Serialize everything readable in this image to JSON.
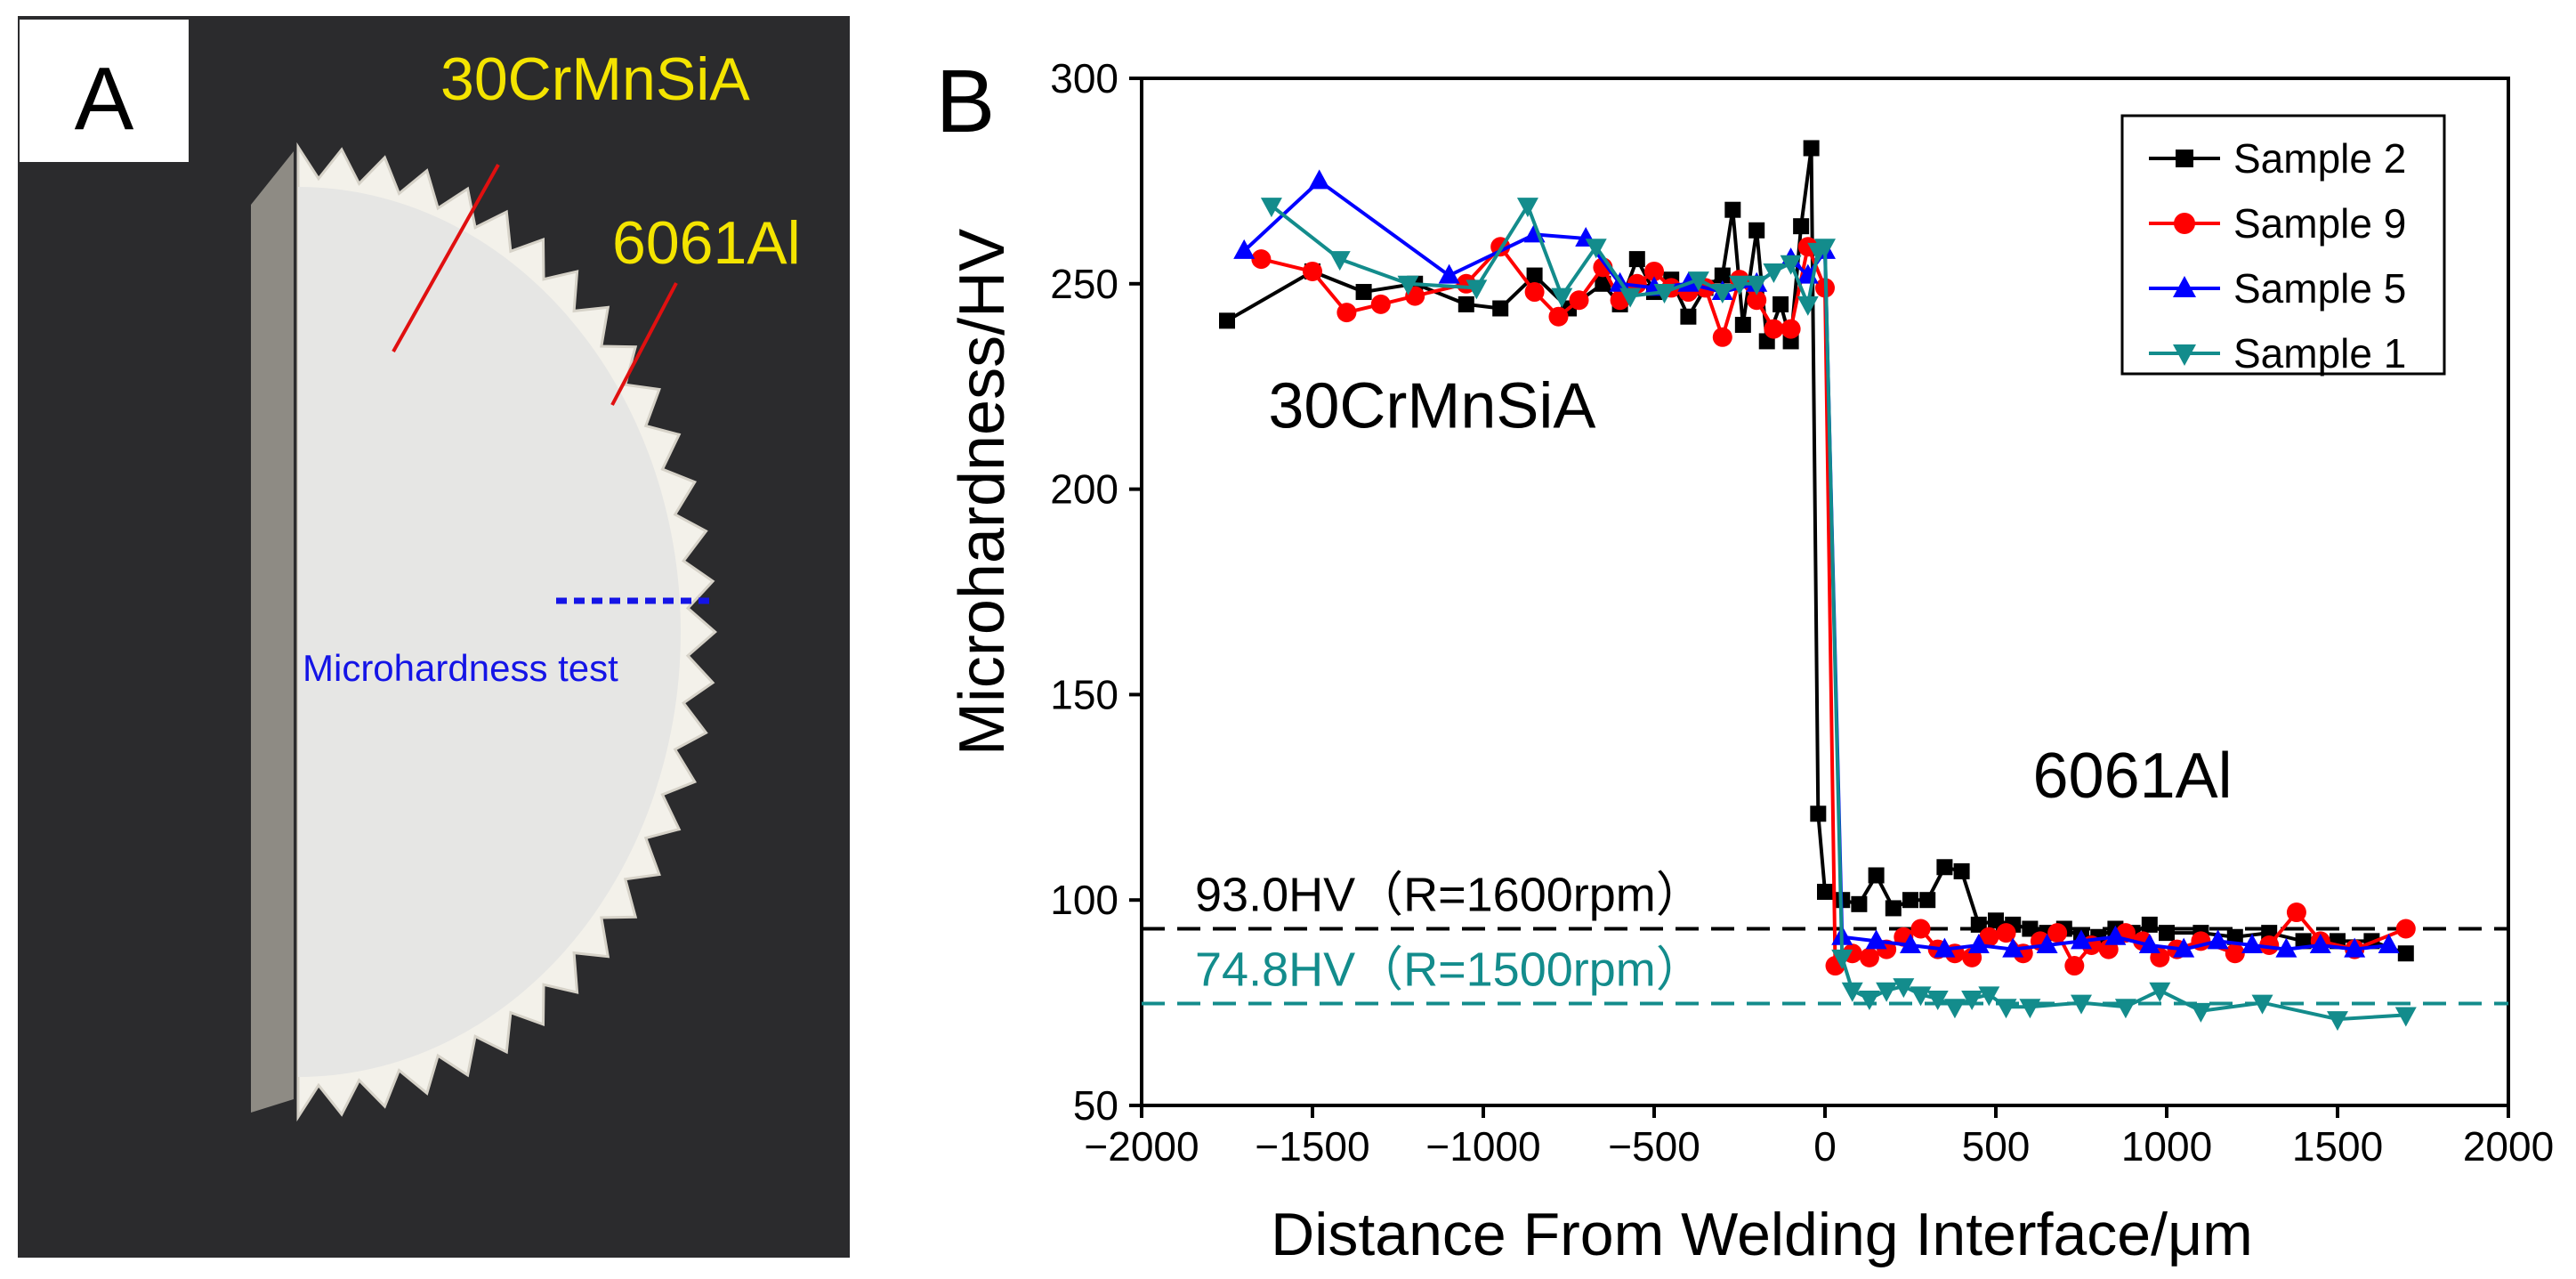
{
  "panel_a": {
    "letter": "A",
    "label_steel": "30CrMnSiA",
    "label_al": "6061Al",
    "test_label": "Microhardness test",
    "colors": {
      "background": "#2b2b2d",
      "label": "#f4e400",
      "test": "#1414e6",
      "leader": "#e01010"
    }
  },
  "panel_b": {
    "letter": "B"
  },
  "chart_data": {
    "type": "line",
    "title": "",
    "xlabel": "Distance From Welding Interface/μm",
    "ylabel": "Microhardness/HV",
    "xlim": [
      -2000,
      2000
    ],
    "ylim": [
      50,
      300
    ],
    "xticks": [
      -2000,
      -1500,
      -1000,
      -500,
      0,
      500,
      1000,
      1500,
      2000
    ],
    "yticks": [
      50,
      100,
      150,
      200,
      250,
      300
    ],
    "x_tick_labels": [
      "−2000",
      "−1500",
      "−1000",
      "−500",
      "0",
      "500",
      "1000",
      "1500",
      "2000"
    ],
    "y_tick_labels": [
      "50",
      "100",
      "150",
      "200",
      "250",
      "300"
    ],
    "grid": false,
    "legend_position": "top-right",
    "series": [
      {
        "name": "Sample 2",
        "color": "#000000",
        "marker": "square",
        "x": [
          -1750,
          -1500,
          -1350,
          -1200,
          -1050,
          -950,
          -850,
          -750,
          -650,
          -600,
          -550,
          -500,
          -450,
          -400,
          -350,
          -300,
          -270,
          -240,
          -200,
          -170,
          -130,
          -100,
          -70,
          -40,
          -20,
          0,
          50,
          100,
          150,
          200,
          250,
          300,
          350,
          400,
          450,
          500,
          550,
          600,
          650,
          700,
          750,
          800,
          850,
          900,
          950,
          1000,
          1100,
          1200,
          1300,
          1400,
          1500,
          1600,
          1700
        ],
        "y": [
          241,
          253,
          248,
          250,
          245,
          244,
          252,
          244,
          250,
          245,
          256,
          248,
          251,
          242,
          249,
          252,
          268,
          240,
          263,
          236,
          245,
          236,
          264,
          283,
          121,
          102,
          100,
          99,
          106,
          98,
          100,
          100,
          108,
          107,
          94,
          95,
          94,
          93,
          92,
          93,
          91,
          91,
          93,
          92,
          94,
          92,
          92,
          91,
          92,
          90,
          90,
          90,
          87
        ]
      },
      {
        "name": "Sample 9",
        "color": "#ff0000",
        "marker": "circle",
        "x": [
          -1650,
          -1500,
          -1400,
          -1300,
          -1200,
          -1050,
          -950,
          -850,
          -780,
          -720,
          -650,
          -600,
          -550,
          -500,
          -450,
          -400,
          -350,
          -300,
          -250,
          -200,
          -150,
          -100,
          -50,
          0,
          30,
          80,
          130,
          180,
          230,
          280,
          330,
          380,
          430,
          480,
          530,
          580,
          630,
          680,
          730,
          780,
          830,
          880,
          930,
          980,
          1030,
          1100,
          1200,
          1300,
          1380,
          1450,
          1550,
          1700
        ],
        "y": [
          256,
          253,
          243,
          245,
          247,
          250,
          259,
          248,
          242,
          246,
          254,
          246,
          250,
          253,
          249,
          248,
          249,
          237,
          251,
          246,
          239,
          239,
          259,
          249,
          84,
          87,
          86,
          88,
          91,
          93,
          88,
          87,
          86,
          91,
          92,
          87,
          90,
          92,
          84,
          89,
          88,
          92,
          90,
          86,
          88,
          90,
          87,
          89,
          97,
          90,
          88,
          93
        ]
      },
      {
        "name": "Sample 5",
        "color": "#0000ff",
        "marker": "triangle-up",
        "x": [
          -1700,
          -1480,
          -1100,
          -850,
          -700,
          -600,
          -500,
          -400,
          -300,
          -200,
          -100,
          -50,
          0,
          50,
          150,
          250,
          350,
          450,
          550,
          650,
          750,
          850,
          950,
          1050,
          1150,
          1250,
          1350,
          1450,
          1550,
          1650
        ],
        "y": [
          258,
          275,
          252,
          262,
          261,
          250,
          249,
          250,
          248,
          250,
          256,
          252,
          258,
          91,
          90,
          89,
          88,
          89,
          88,
          89,
          90,
          91,
          89,
          88,
          90,
          89,
          88,
          89,
          88,
          89
        ]
      },
      {
        "name": "Sample 1",
        "color": "#138c8c",
        "marker": "triangle-down",
        "x": [
          -1620,
          -1420,
          -1220,
          -1020,
          -870,
          -770,
          -670,
          -570,
          -470,
          -370,
          -300,
          -250,
          -200,
          -150,
          -100,
          -50,
          -20,
          0,
          50,
          80,
          130,
          180,
          230,
          280,
          330,
          380,
          430,
          480,
          530,
          600,
          750,
          880,
          980,
          1100,
          1280,
          1500,
          1700
        ],
        "y": [
          269,
          256,
          250,
          249,
          269,
          247,
          259,
          247,
          248,
          251,
          248,
          250,
          250,
          253,
          255,
          245,
          258,
          259,
          86,
          78,
          76,
          78,
          79,
          77,
          76,
          74,
          76,
          77,
          74,
          74,
          75,
          74,
          78,
          73,
          75,
          71,
          72
        ]
      }
    ],
    "reference_lines": [
      {
        "y": 93.0,
        "label": "93.0HV（R=1600rpm）",
        "color": "#000000"
      },
      {
        "y": 74.8,
        "label": "74.8HV（R=1500rpm）",
        "color": "#138c8c"
      }
    ],
    "annotations": [
      {
        "text": "30CrMnSiA",
        "x": -1150,
        "y": 215
      },
      {
        "text": "6061Al",
        "x": 900,
        "y": 125
      }
    ]
  }
}
